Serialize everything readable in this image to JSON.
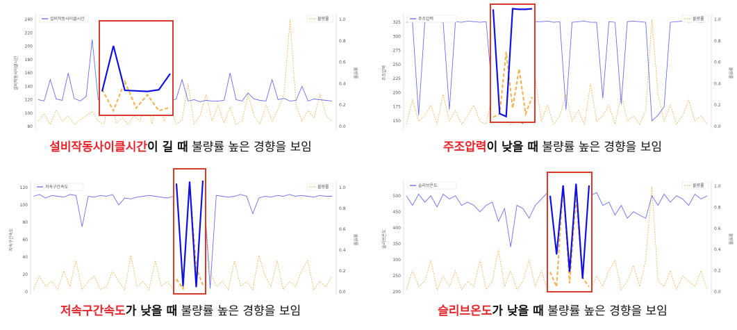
{
  "colors": {
    "series": "#3a3af0",
    "defect": "#f5b04a",
    "highlight_box": "#d63b2b",
    "highlight_text": "#e8232a"
  },
  "chart_data": [
    {
      "type": "line",
      "series": [
        {
          "name": "설비작동사이클시간",
          "axis": "left",
          "color": "#3a3af0",
          "values": [
            120,
            118,
            150,
            121,
            119,
            160,
            122,
            118,
            125,
            210,
            120,
            118,
            170,
            121,
            119,
            140,
            118,
            122,
            118,
            200,
            120,
            119,
            118,
            121,
            150,
            118,
            120,
            117,
            119,
            118,
            118,
            119,
            160,
            120,
            118,
            130,
            121,
            119,
            118,
            150,
            120,
            122,
            118,
            119,
            140,
            118,
            121,
            120,
            119,
            118
          ]
        },
        {
          "name": "불량률",
          "axis": "right",
          "color": "#f5b04a",
          "values": [
            0.05,
            0.12,
            0.02,
            0.15,
            0.05,
            0.1,
            0.02,
            0.06,
            0.1,
            0.14,
            0.05,
            0.02,
            0.4,
            0.03,
            0.08,
            0.02,
            0.1,
            0.05,
            0.26,
            0.02,
            0.35,
            0.05,
            0.2,
            0.02,
            0.06,
            0.4,
            0.02,
            0.1,
            0.3,
            0.05,
            0.2,
            0.03,
            0.18,
            0.02,
            0.05,
            0.3,
            0.1,
            0.02,
            0.2,
            0.05,
            0.16,
            0.3,
            1.0,
            0.2,
            0.05,
            0.15,
            0.08,
            0.3,
            0.1,
            0.05
          ]
        }
      ],
      "ylim": [
        80,
        240
      ],
      "yticks": [
        80,
        100,
        120,
        140,
        160,
        180,
        200,
        220,
        240
      ],
      "y2lim": [
        0,
        1.0
      ],
      "y2ticks": [
        "0.0",
        "0.2",
        "0.4",
        "0.6",
        "0.8",
        "1.0"
      ],
      "ylabel": "설비작동사이클시간",
      "y2label": "불량률",
      "legend_left": "설비작동사이클시간",
      "legend_right": "불량률",
      "caption_highlight": "설비작동사이클시간",
      "caption_condition": "이 길 때",
      "caption_rest": " 불량률 높은 경향을 보임"
    },
    {
      "type": "line",
      "series": [
        {
          "name": "주조압력",
          "axis": "left",
          "color": "#3a3af0",
          "values": [
            325,
            326,
            160,
            325,
            327,
            326,
            325,
            170,
            326,
            325,
            327,
            326,
            325,
            326,
            200,
            326,
            325,
            326,
            150,
            145,
            327,
            326,
            326,
            327,
            325,
            326,
            170,
            325,
            326,
            327,
            325,
            325,
            190,
            326,
            325,
            180,
            326,
            327,
            326,
            325,
            150,
            160,
            175,
            325,
            326,
            327,
            325,
            326,
            325,
            326
          ]
        },
        {
          "name": "불량률",
          "axis": "right",
          "color": "#f5b04a",
          "values": [
            0.02,
            0.25,
            0.05,
            0.1,
            0.2,
            0.02,
            0.3,
            0.05,
            0.15,
            0.02,
            0.1,
            0.2,
            0.05,
            0.02,
            0.3,
            0.05,
            0.1,
            0.02,
            0.05,
            0.6,
            0.1,
            0.45,
            0.05,
            0.2,
            0.02,
            0.1,
            0.3,
            0.05,
            0.15,
            0.02,
            0.4,
            0.05,
            0.1,
            0.2,
            0.02,
            0.3,
            0.05,
            0.1,
            0.02,
            0.15,
            1.0,
            0.3,
            0.05,
            0.2,
            0.02,
            0.1,
            0.25,
            0.05,
            0.1,
            0.02
          ]
        }
      ],
      "ylim": [
        140,
        330
      ],
      "yticks": [
        150,
        175,
        200,
        225,
        250,
        275,
        300,
        325
      ],
      "y2lim": [
        0,
        1.0
      ],
      "y2ticks": [
        "0.0",
        "0.2",
        "0.4",
        "0.6",
        "0.8",
        "1.0"
      ],
      "ylabel": "주조압력",
      "y2label": "불량률",
      "legend_left": "주조압력",
      "legend_right": "불량률",
      "caption_highlight": "주조압력",
      "caption_condition": "이 낮을 때",
      "caption_rest": " 불량률 높은 경향을 보임"
    },
    {
      "type": "line",
      "series": [
        {
          "name": "저속구간속도",
          "axis": "left",
          "color": "#3a3af0",
          "values": [
            110,
            112,
            108,
            111,
            110,
            109,
            112,
            111,
            75,
            110,
            109,
            111,
            110,
            112,
            100,
            108,
            107,
            109,
            110,
            111,
            110,
            109,
            108,
            110,
            112,
            110,
            108,
            5,
            110,
            4,
            111,
            110,
            109,
            110,
            112,
            110,
            90,
            108,
            110,
            109,
            111,
            110,
            112,
            110,
            111,
            110,
            109,
            111,
            110,
            110
          ]
        },
        {
          "name": "불량률",
          "axis": "right",
          "color": "#f5b04a",
          "values": [
            0.02,
            0.15,
            0.05,
            0.1,
            0.02,
            0.2,
            0.05,
            0.3,
            0.02,
            0.1,
            0.15,
            0.02,
            0.05,
            0.2,
            0.1,
            0.02,
            0.35,
            0.05,
            0.1,
            0.02,
            0.3,
            0.05,
            0.1,
            0.02,
            0.05,
            0.25,
            0.1,
            0.02,
            0.9,
            0.2,
            0.05,
            0.1,
            0.02,
            0.3,
            0.05,
            0.1,
            0.02,
            0.35,
            0.15,
            0.05,
            0.3,
            0.02,
            0.1,
            0.05,
            0.2,
            0.3,
            0.02,
            0.1,
            0.05,
            0.15
          ]
        }
      ],
      "ylim": [
        0,
        120
      ],
      "yticks": [
        0,
        20,
        40,
        60,
        80,
        100,
        120
      ],
      "y2lim": [
        0,
        1.0
      ],
      "y2ticks": [
        "0.0",
        "0.2",
        "0.4",
        "0.6",
        "0.8",
        "1.0"
      ],
      "ylabel": "저속구간속도",
      "y2label": "불량률",
      "legend_left": "저속구간속도",
      "legend_right": "불량률",
      "caption_highlight": "저속구간속도",
      "caption_condition": "가 낮을 때",
      "caption_rest": " 불량률 높은 경향을 보임"
    },
    {
      "type": "line",
      "series": [
        {
          "name": "슬리브온도",
          "axis": "left",
          "color": "#3a3af0",
          "values": [
            500,
            470,
            505,
            480,
            500,
            465,
            505,
            490,
            500,
            470,
            480,
            470,
            450,
            470,
            480,
            420,
            460,
            340,
            470,
            460,
            430,
            470,
            490,
            510,
            470,
            300,
            500,
            250,
            505,
            230,
            500,
            510,
            470,
            480,
            440,
            470,
            430,
            450,
            440,
            430,
            500,
            470,
            505,
            480,
            500,
            490,
            470,
            505,
            490,
            500
          ]
        },
        {
          "name": "불량률",
          "axis": "right",
          "color": "#f5b04a",
          "values": [
            0.02,
            0.2,
            0.05,
            0.1,
            0.3,
            0.02,
            0.15,
            0.05,
            0.2,
            0.02,
            0.1,
            0.05,
            0.3,
            0.02,
            0.1,
            0.4,
            0.05,
            0.2,
            0.02,
            0.1,
            0.3,
            0.05,
            0.2,
            0.02,
            0.15,
            0.02,
            0.9,
            0.05,
            0.8,
            0.1,
            0.02,
            0.15,
            0.05,
            0.2,
            0.3,
            0.02,
            0.1,
            0.25,
            0.05,
            0.3,
            1.0,
            0.1,
            0.05,
            0.2,
            0.02,
            0.15,
            0.1,
            0.05,
            0.2,
            0.02
          ]
        }
      ],
      "ylim": [
        200,
        530
      ],
      "yticks": [
        200,
        250,
        300,
        350,
        400,
        450,
        500
      ],
      "y2lim": [
        0,
        1.0
      ],
      "y2ticks": [
        "0.0",
        "0.2",
        "0.4",
        "0.6",
        "0.8",
        "1.0"
      ],
      "ylabel": "슬리브온도",
      "y2label": "불량률",
      "legend_left": "슬리브온도",
      "legend_right": "불량률",
      "caption_highlight": "슬리브온도",
      "caption_condition": "가 낮을 때",
      "caption_rest": " 불량률 높은 경향을 보임"
    }
  ]
}
